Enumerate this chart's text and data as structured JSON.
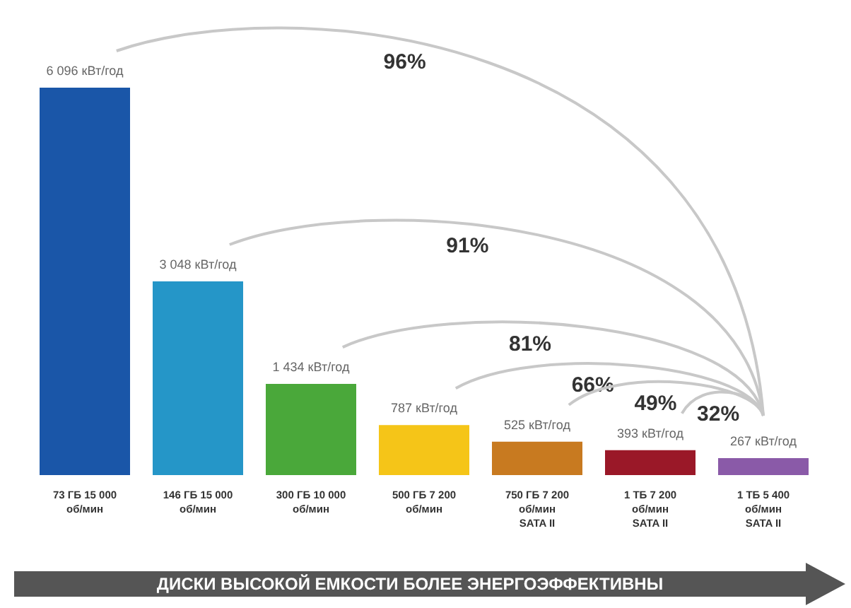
{
  "chart_data": {
    "type": "bar",
    "xlabel": "ДИСКИ ВЫСОКОЙ ЕМКОСТИ БОЛЕЕ ЭНЕРГОЭФФЕКТИВНЫ",
    "categories": [
      "73 ГБ 15 000\nоб/мин",
      "146 ГБ 15 000\nоб/мин",
      "300 ГБ 10 000\nоб/мин",
      "500 ГБ 7 200\nоб/мин",
      "750 ГБ 7 200\nоб/мин\nSATA II",
      "1 ТБ 7 200\nоб/мин\nSATA II",
      "1 ТБ 5 400\nоб/мин\nSATA II"
    ],
    "values": [
      6096,
      3048,
      1434,
      787,
      525,
      393,
      267
    ],
    "colors": [
      "#1a56a8",
      "#2596c8",
      "#4aa83a",
      "#f5c518",
      "#c87a20",
      "#9a1828",
      "#8a5aa8"
    ],
    "value_labels": [
      "6 096 кВт/год",
      "3 048 кВт/год",
      "1 434 кВт/год",
      "787 кВт/год",
      "525 кВт/год",
      "393 кВт/год",
      "267 кВт/год"
    ],
    "annotations": [
      "96%",
      "91%",
      "81%",
      "66%",
      "49%",
      "32%"
    ]
  }
}
